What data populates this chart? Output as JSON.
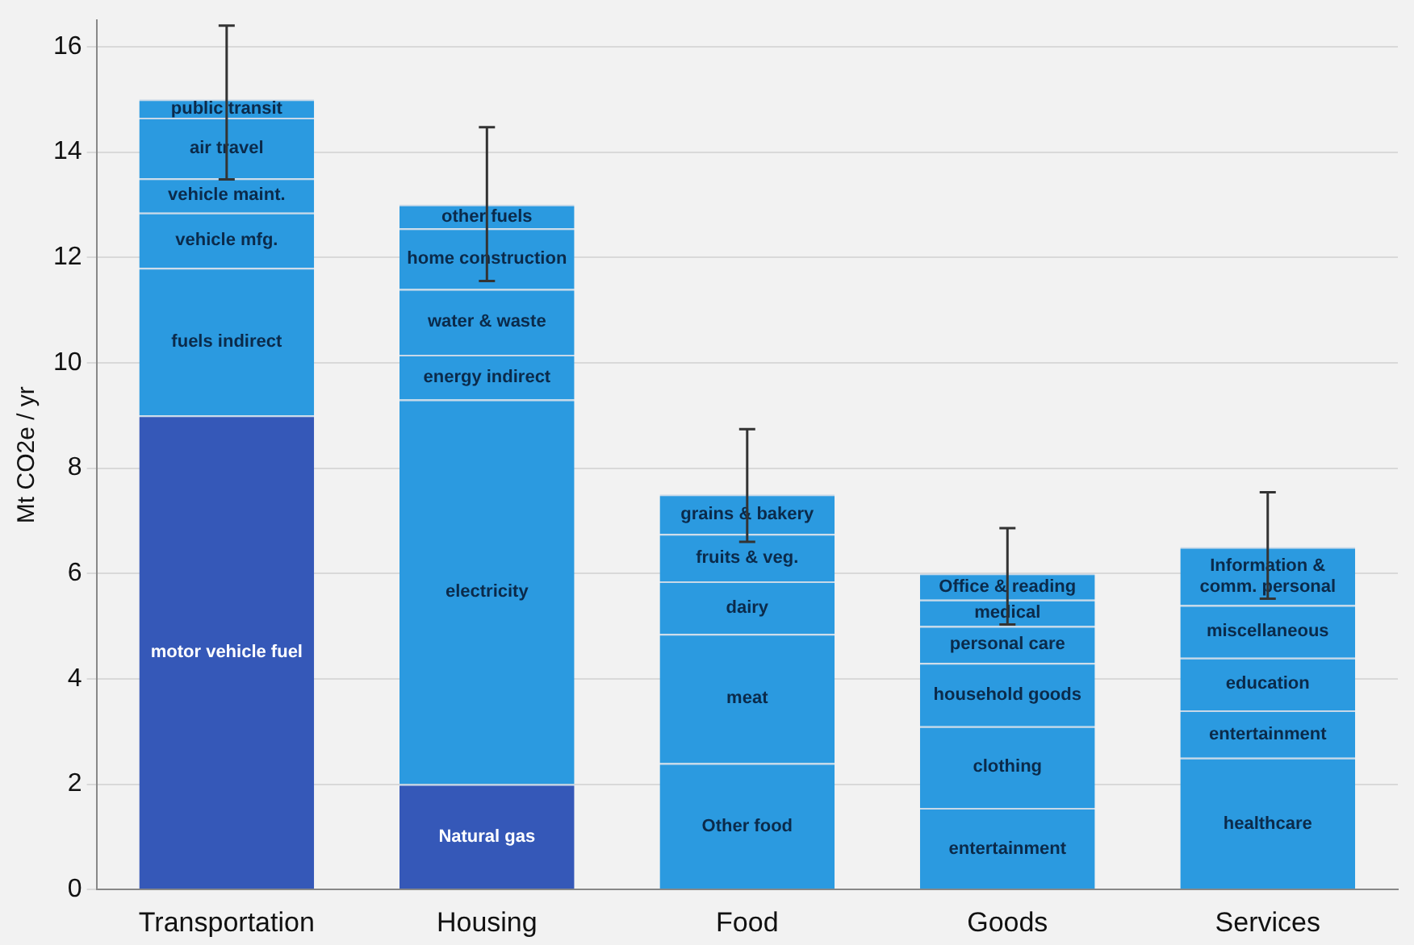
{
  "chart_data": {
    "type": "bar",
    "stacked": true,
    "ylabel": "Mt CO2e / yr",
    "categories": [
      "Transportation",
      "Housing",
      "Food",
      "Goods",
      "Services"
    ],
    "series": [
      {
        "colors": [
          "#3558b8",
          "#3558b8",
          null,
          "#2b9ae0",
          null
        ],
        "values": [
          9,
          2,
          null,
          1.55,
          null
        ]
      },
      {
        "colors": [
          "#2b9ae0",
          "#2b9ae0",
          "#2b9ae0",
          "#2b9ae0",
          "#2b9ae0"
        ],
        "values": [
          2.8,
          7.3,
          2.4,
          1.55,
          2.5
        ]
      },
      {
        "colors": [
          "#2b9ae0",
          "#2b9ae0",
          "#2b9ae0",
          "#2b9ae0",
          "#2b9ae0"
        ],
        "values": [
          1.05,
          0.85,
          2.45,
          1.2,
          0.9
        ]
      },
      {
        "colors": [
          "#2b9ae0",
          "#2b9ae0",
          "#2b9ae0",
          "#2b9ae0",
          "#2b9ae0"
        ],
        "values": [
          0.65,
          1.25,
          1.0,
          0.7,
          1.0
        ]
      },
      {
        "colors": [
          "#2b9ae0",
          "#2b9ae0",
          "#2b9ae0",
          "#2b9ae0",
          "#2b9ae0"
        ],
        "values": [
          1.15,
          1.15,
          0.9,
          0.5,
          1.0
        ]
      },
      {
        "colors": [
          "#2b9ae0",
          "#2b9ae0",
          "#2b9ae0",
          "#2b9ae0",
          "#2b9ae0"
        ],
        "values": [
          0.35,
          0.45,
          0.75,
          0.5,
          1.1
        ],
        "errors": [
          [
            13.48,
            16.4
          ],
          [
            11.55,
            14.47
          ],
          [
            6.6,
            8.74
          ],
          [
            5.03,
            6.86
          ],
          [
            5.52,
            7.54
          ]
        ]
      }
    ],
    "ylim": [
      0,
      16.5
    ],
    "yticks": [
      0,
      2,
      4,
      6,
      8,
      10,
      12,
      14,
      16
    ],
    "grid": "y",
    "legend": false,
    "annotations": [
      "motor vehicle fuel",
      "fuels indirect",
      "vehicle mfg.",
      "vehicle maint.",
      "air travel",
      "public transit",
      "Natural gas",
      "electricity",
      "energy indirect",
      "water & waste",
      "home construction",
      "other fuels",
      "Other food",
      "meat",
      "dairy",
      "fruits & veg.",
      "grains & bakery",
      "entertainment",
      "clothing",
      "household goods",
      "personal care",
      "medical",
      "Office & reading",
      "healthcare",
      "entertainment",
      "education",
      "miscellaneous",
      "Information & comm. personal"
    ]
  }
}
